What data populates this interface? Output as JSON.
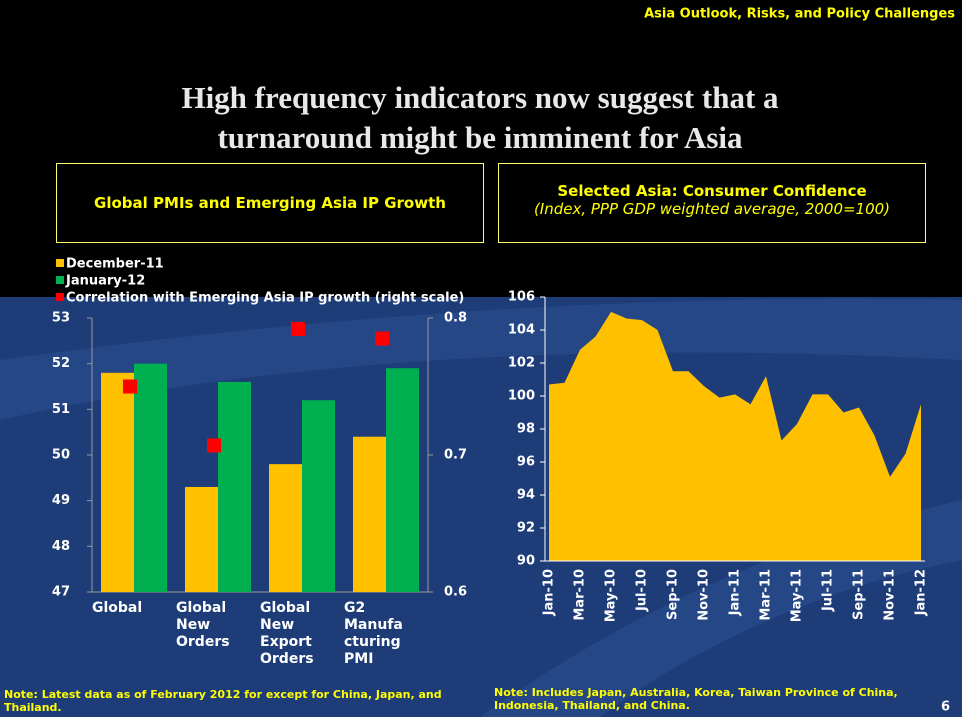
{
  "header": {
    "section": "Asia Outlook, Risks, and Policy Challenges",
    "title": "High frequency indicators now suggest that a turnaround might be imminent for Asia",
    "page": "6"
  },
  "chart_data": [
    {
      "type": "bar",
      "title": "Global PMIs and Emerging Asia IP Growth",
      "categories": [
        "Global",
        "Global New Orders",
        "Global New Export Orders",
        "G2 Manufacturing PMI"
      ],
      "series": [
        {
          "name": "December-11",
          "color": "#ffc000",
          "values": [
            51.8,
            49.3,
            49.8,
            50.4
          ]
        },
        {
          "name": "January-12",
          "color": "#00b050",
          "values": [
            52.0,
            51.6,
            51.2,
            51.9
          ]
        },
        {
          "name": "Correlation with Emerging Asia IP growth (right scale)",
          "color": "#ff0000",
          "axis": "y2",
          "marker": "square",
          "values": [
            0.75,
            0.707,
            0.792,
            0.785
          ]
        }
      ],
      "ylim": [
        47,
        53
      ],
      "yticks": [
        47,
        48,
        49,
        50,
        51,
        52,
        53
      ],
      "y2lim": [
        0.6,
        0.8
      ],
      "y2ticks": [
        0.6,
        0.7,
        0.8
      ],
      "note": "Note: Latest data as of February 2012 for except for China, Japan, and Thailand."
    },
    {
      "type": "area",
      "title": "Selected Asia: Consumer Confidence",
      "subtitle": "(Index, PPP GDP weighted average, 2000=100)",
      "color": "#ffc000",
      "categories": [
        "Jan-10",
        null,
        "Mar-10",
        null,
        "May-10",
        null,
        "Jul-10",
        null,
        "Sep-10",
        null,
        "Nov-10",
        null,
        "Jan-11",
        null,
        "Mar-11",
        null,
        "May-11",
        null,
        "Jul-11",
        null,
        "Sep-11",
        null,
        "Nov-11",
        null,
        "Jan-12"
      ],
      "values": [
        100.7,
        100.8,
        102.8,
        103.6,
        105.1,
        104.7,
        104.6,
        104.0,
        101.5,
        101.5,
        100.6,
        99.9,
        100.1,
        99.5,
        101.2,
        97.3,
        98.3,
        100.1,
        100.1,
        99.0,
        99.3,
        97.6,
        95.1,
        96.5,
        99.5
      ],
      "ylim": [
        90,
        106
      ],
      "yticks": [
        90,
        92,
        94,
        96,
        98,
        100,
        102,
        104,
        106
      ],
      "note": "Note: Includes Japan, Australia, Korea, Taiwan Province of China, Indonesia, Thailand, and China."
    }
  ]
}
